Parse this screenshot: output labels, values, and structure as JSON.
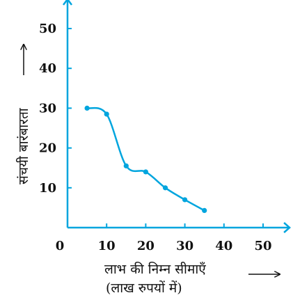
{
  "chart_data": {
    "type": "line",
    "x": [
      5,
      10,
      15,
      20,
      25,
      30,
      35
    ],
    "values": [
      30,
      28.5,
      15.5,
      14,
      10,
      7,
      4.3
    ],
    "xlim": [
      0,
      55
    ],
    "ylim": [
      0,
      57
    ],
    "xticks": [
      10,
      20,
      30,
      40,
      50
    ],
    "yticks": [
      10,
      20,
      30,
      40,
      50
    ],
    "origin_label": "0",
    "xlabel": "लाभ की निम्न सीमाएँ",
    "xlabel_line2": "(लाख रुपयों में)",
    "ylabel": "संचयी बारंबारता",
    "grid": false,
    "series_color": "#00a5de",
    "axis_color": "#00a5de",
    "marker": "filled-circle",
    "curve": "smooth"
  }
}
